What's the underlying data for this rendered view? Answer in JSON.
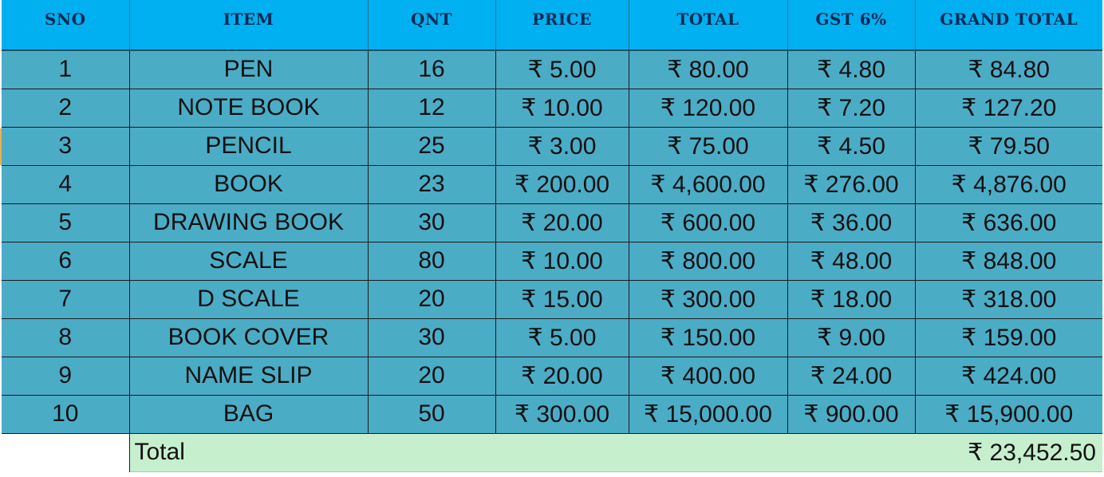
{
  "table": {
    "headers": {
      "sno": "SNO",
      "item": "ITEM",
      "qnt": "QNT",
      "price": "PRICE",
      "total": "TOTAL",
      "gst": "GST 6%",
      "grand_total": "GRAND TOTAL"
    },
    "rows": [
      {
        "sno": "1",
        "item": "PEN",
        "qnt": "16",
        "price": "₹ 5.00",
        "total": "₹ 80.00",
        "gst": "₹ 4.80",
        "grand_total": "₹ 84.80"
      },
      {
        "sno": "2",
        "item": "NOTE BOOK",
        "qnt": "12",
        "price": "₹ 10.00",
        "total": "₹ 120.00",
        "gst": "₹ 7.20",
        "grand_total": "₹ 127.20"
      },
      {
        "sno": "3",
        "item": "PENCIL",
        "qnt": "25",
        "price": "₹ 3.00",
        "total": "₹ 75.00",
        "gst": "₹ 4.50",
        "grand_total": "₹ 79.50"
      },
      {
        "sno": "4",
        "item": "BOOK",
        "qnt": "23",
        "price": "₹ 200.00",
        "total": "₹ 4,600.00",
        "gst": "₹ 276.00",
        "grand_total": "₹ 4,876.00"
      },
      {
        "sno": "5",
        "item": "DRAWING BOOK",
        "qnt": "30",
        "price": "₹ 20.00",
        "total": "₹ 600.00",
        "gst": "₹ 36.00",
        "grand_total": "₹ 636.00"
      },
      {
        "sno": "6",
        "item": "SCALE",
        "qnt": "80",
        "price": "₹ 10.00",
        "total": "₹ 800.00",
        "gst": "₹ 48.00",
        "grand_total": "₹ 848.00"
      },
      {
        "sno": "7",
        "item": "D SCALE",
        "qnt": "20",
        "price": "₹ 15.00",
        "total": "₹ 300.00",
        "gst": "₹ 18.00",
        "grand_total": "₹ 318.00"
      },
      {
        "sno": "8",
        "item": "BOOK COVER",
        "qnt": "30",
        "price": "₹ 5.00",
        "total": "₹ 150.00",
        "gst": "₹ 9.00",
        "grand_total": "₹ 159.00"
      },
      {
        "sno": "9",
        "item": "NAME SLIP",
        "qnt": "20",
        "price": "₹ 20.00",
        "total": "₹ 400.00",
        "gst": "₹ 24.00",
        "grand_total": "₹ 424.00"
      },
      {
        "sno": "10",
        "item": "BAG",
        "qnt": "50",
        "price": "₹ 300.00",
        "total": "₹ 15,000.00",
        "gst": "₹ 900.00",
        "grand_total": "₹ 15,900.00"
      }
    ],
    "footer": {
      "label": "Total",
      "value": "₹ 23,452.50"
    }
  },
  "colors": {
    "header_fill": "#00b0f0",
    "body_fill": "#4bacc6",
    "total_fill": "#c6efce"
  }
}
